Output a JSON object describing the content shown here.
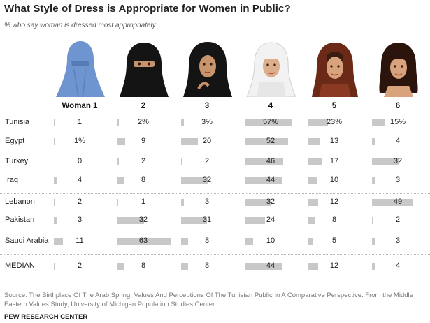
{
  "title": "What Style of Dress is Appropriate for Women in Public?",
  "subtitle": "% who say woman is dressed most appropriately",
  "source": "Source: The Birthplace Of The Arab Spring: Values And Perceptions Of The Tunisian Public In A Comparative Perspective. From the Middle Eastern Values Study, University of Michigan Population Studies Center.",
  "footer": "PEW RESEARCH CENTER",
  "colors": {
    "bar": "#c8c8c8",
    "skin": "#d8a27c",
    "veil_blue": "#6e95cf",
    "veil_black": "#141414",
    "hair_brown": "#5a2a14"
  },
  "icons": [
    "burqa-woman-icon",
    "niqab-woman-icon",
    "chador-woman-icon",
    "white-hijab-woman-icon",
    "loose-headscarf-woman-icon",
    "uncovered-woman-icon"
  ],
  "chart_data": {
    "type": "table",
    "title": "What Style of Dress is Appropriate for Women in Public?",
    "subtitle": "% who say woman is dressed most appropriately",
    "columns": [
      "Woman 1",
      "2",
      "3",
      "4",
      "5",
      "6"
    ],
    "rows": [
      {
        "label": "Tunisia",
        "values": [
          1,
          2,
          3,
          57,
          23,
          15
        ],
        "display": [
          "1",
          "2%",
          "3%",
          "57%",
          "23%",
          "15%"
        ]
      },
      {
        "label": "Egypt",
        "values": [
          1,
          9,
          20,
          52,
          13,
          4
        ],
        "display": [
          "1%",
          "9",
          "20",
          "52",
          "13",
          "4"
        ]
      },
      {
        "label": "Turkey",
        "values": [
          0,
          2,
          2,
          46,
          17,
          32
        ],
        "display": [
          "0",
          "2",
          "2",
          "46",
          "17",
          "32"
        ]
      },
      {
        "label": "Iraq",
        "values": [
          4,
          8,
          32,
          44,
          10,
          3
        ],
        "display": [
          "4",
          "8",
          "32",
          "44",
          "10",
          "3"
        ]
      },
      {
        "label": "Lebanon",
        "values": [
          2,
          1,
          3,
          32,
          12,
          49
        ],
        "display": [
          "2",
          "1",
          "3",
          "32",
          "12",
          "49"
        ]
      },
      {
        "label": "Pakistan",
        "values": [
          3,
          32,
          31,
          24,
          8,
          2
        ],
        "display": [
          "3",
          "32",
          "31",
          "24",
          "8",
          "2"
        ]
      },
      {
        "label": "Saudi Arabia",
        "values": [
          11,
          63,
          8,
          10,
          5,
          3
        ],
        "display": [
          "11",
          "63",
          "8",
          "10",
          "5",
          "3"
        ]
      },
      {
        "label": "MEDIAN",
        "values": [
          2,
          8,
          8,
          44,
          12,
          4
        ],
        "display": [
          "2",
          "8",
          "8",
          "44",
          "12",
          "4"
        ]
      }
    ]
  }
}
